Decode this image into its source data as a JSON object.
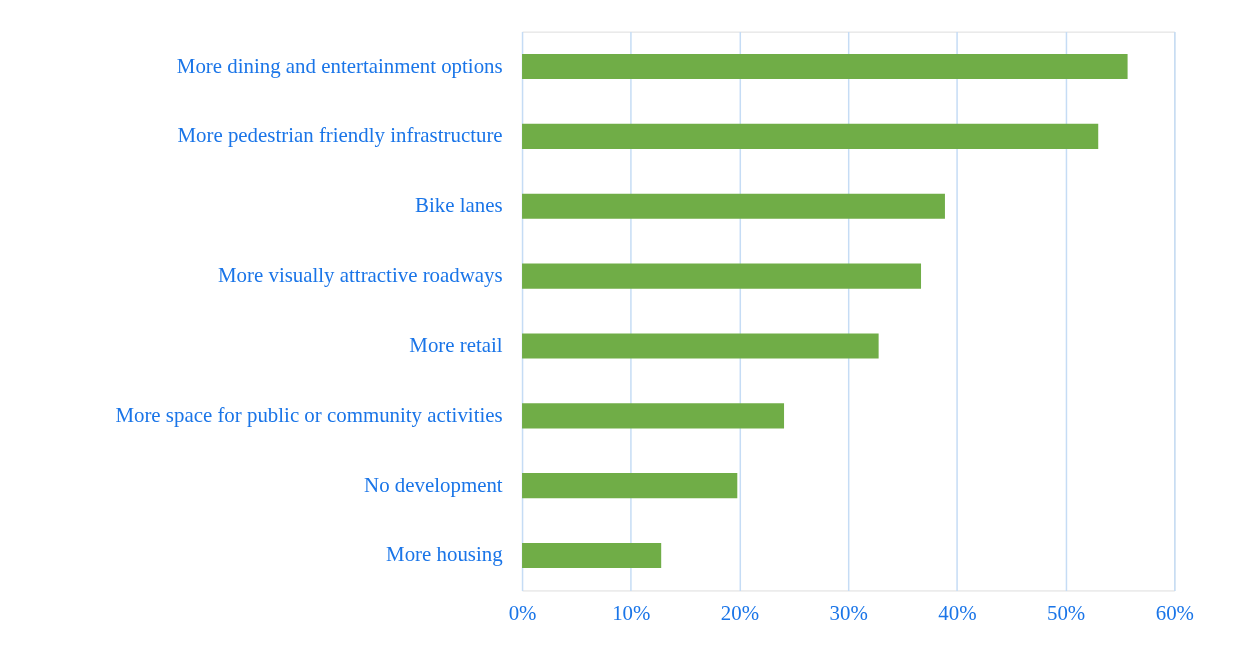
{
  "chart_data": {
    "type": "bar",
    "orientation": "horizontal",
    "categories": [
      "More dining and entertainment options",
      "More pedestrian friendly infrastructure",
      "Bike lanes",
      "More visually attractive roadways",
      "More retail",
      "More space for public or community activities",
      "No development",
      "More housing"
    ],
    "values": [
      55.7,
      53,
      38.9,
      36.7,
      32.8,
      24.1,
      19.8,
      12.8
    ],
    "color": "#70ad47",
    "xlim": [
      0,
      60
    ],
    "xticks": [
      {
        "value": 0,
        "label": "0%"
      },
      {
        "value": 10,
        "label": "10%"
      },
      {
        "value": 20,
        "label": "20%"
      },
      {
        "value": 30,
        "label": "30%"
      },
      {
        "value": 40,
        "label": "40%"
      },
      {
        "value": 50,
        "label": "50%"
      },
      {
        "value": 60,
        "label": "60%"
      }
    ],
    "grid": "x"
  }
}
